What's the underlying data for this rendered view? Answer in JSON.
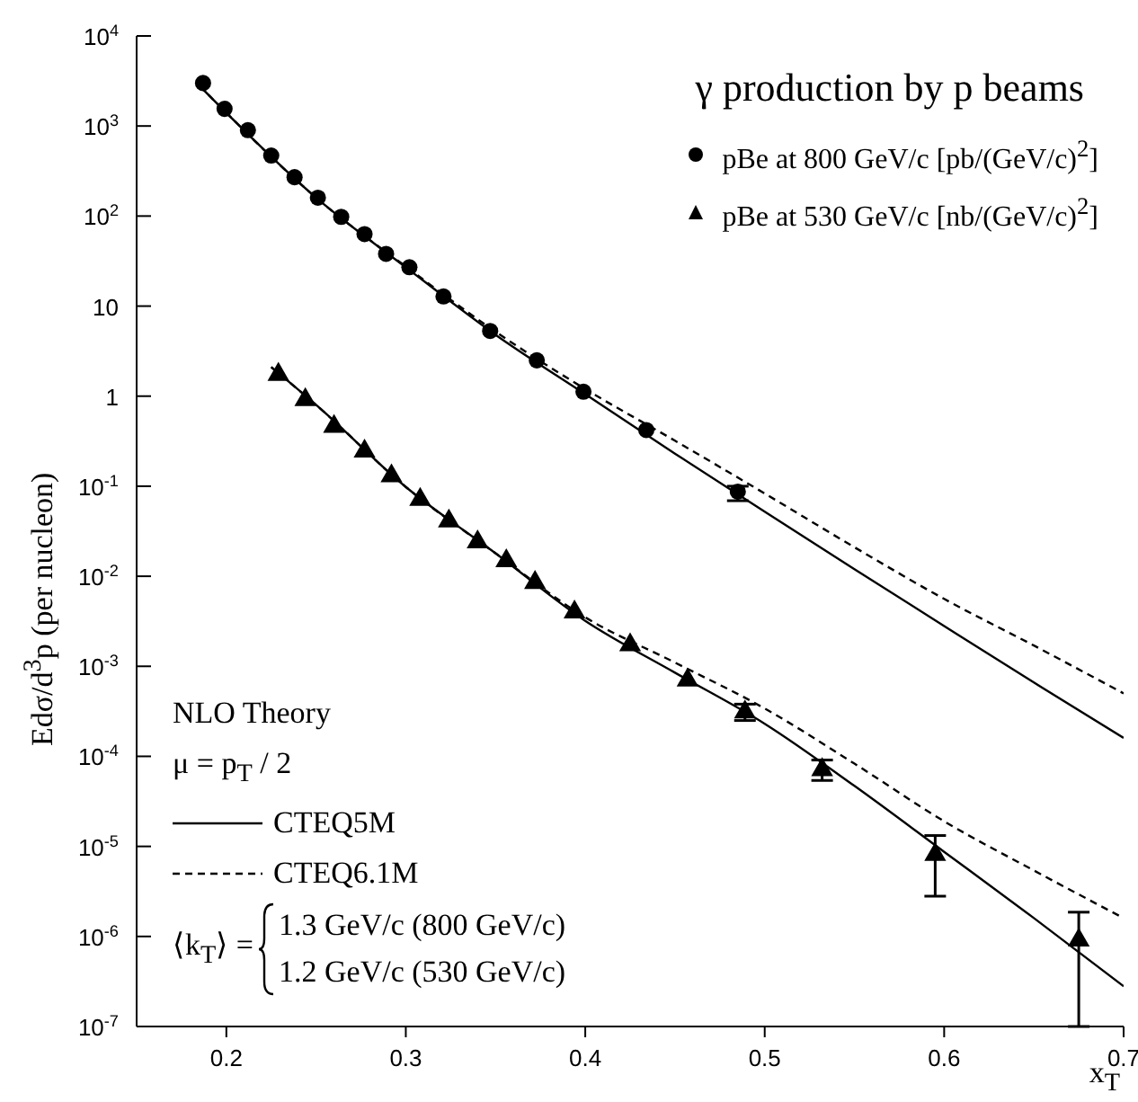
{
  "chart_data": {
    "type": "scatter",
    "title": "γ production by p beams",
    "xlabel": "x$_{T}$",
    "ylabel": "Edσ/d$^{3}$p (per nucleon)",
    "xlim": [
      0.15,
      0.7
    ],
    "xticks": [
      0.2,
      0.3,
      0.4,
      0.5,
      0.6,
      0.7
    ],
    "ylim": [
      1e-07,
      10000
    ],
    "log": "y",
    "yticks": [
      {
        "value": 1e-07,
        "label": "10$^{-7}$"
      },
      {
        "value": 1e-06,
        "label": "10$^{-6}$"
      },
      {
        "value": 1e-05,
        "label": "10$^{-5}$"
      },
      {
        "value": 0.0001,
        "label": "10$^{-4}$"
      },
      {
        "value": 0.001,
        "label": "10$^{-3}$"
      },
      {
        "value": 0.01,
        "label": "10$^{-2}$"
      },
      {
        "value": 0.1,
        "label": "10$^{-1}$"
      },
      {
        "value": 1,
        "label": "1"
      },
      {
        "value": 10,
        "label": "10"
      },
      {
        "value": 100,
        "label": "10$^{2}$"
      },
      {
        "value": 1000,
        "label": "10$^{3}$"
      },
      {
        "value": 10000,
        "label": "10$^{4}$"
      }
    ],
    "legend": "top right",
    "grid": false,
    "annotations": [
      "NLO Theory",
      "μ = p$_{T}$ / 2",
      "⟨k$_{T}$⟩ =",
      "1.3 GeV/c (800 GeV/c)",
      "1.2 GeV/c (530 GeV/c)"
    ],
    "series": [
      {
        "name": "pBe at 800 GeV/c [pb/(GeV/c)$^{2}$]",
        "marker": "circle",
        "color": "#000000",
        "x": [
          0.187,
          0.199,
          0.212,
          0.225,
          0.238,
          0.251,
          0.264,
          0.277,
          0.289,
          0.302,
          0.321,
          0.347,
          0.373,
          0.399,
          0.434,
          0.485
        ],
        "values": [
          3000,
          1550,
          900,
          470,
          270,
          160,
          98,
          63,
          38,
          27,
          12.8,
          5.3,
          2.5,
          1.12,
          0.42,
          0.087
        ],
        "errors": [
          null,
          null,
          null,
          null,
          null,
          null,
          null,
          null,
          null,
          null,
          null,
          null,
          null,
          null,
          null,
          [
            0.069,
            0.1
          ]
        ]
      },
      {
        "name": "pBe at 530 GeV/c [nb/(GeV/c)$^{2}$]",
        "marker": "triangle",
        "color": "#000000",
        "x": [
          0.229,
          0.244,
          0.26,
          0.277,
          0.292,
          0.308,
          0.324,
          0.34,
          0.356,
          0.372,
          0.394,
          0.425,
          0.457,
          0.489,
          0.532,
          0.595,
          0.675
        ],
        "values": [
          1.74,
          0.91,
          0.46,
          0.245,
          0.13,
          0.071,
          0.041,
          0.024,
          0.0148,
          0.0085,
          0.004,
          0.00173,
          0.0007,
          0.00031,
          7.1e-05,
          8.1e-06,
          9.1e-07
        ],
        "errors": [
          null,
          null,
          null,
          null,
          null,
          null,
          null,
          null,
          null,
          null,
          null,
          null,
          null,
          [
            0.00025,
            0.00038
          ],
          [
            5.4e-05,
            9.1e-05
          ],
          [
            2.8e-06,
            1.32e-05
          ],
          [
            1e-07,
            1.86e-06
          ]
        ]
      },
      {
        "name": "CTEQ5M",
        "type": "line",
        "line_style": "solid",
        "color": "#000000",
        "x": [
          0.185,
          0.2,
          0.25,
          0.3,
          0.35,
          0.4,
          0.45,
          0.5,
          0.55,
          0.6,
          0.65,
          0.7
        ],
        "values": [
          2800,
          1400,
          160,
          27,
          4.8,
          1.05,
          0.23,
          0.052,
          0.012,
          0.0028,
          0.00066,
          0.00016
        ]
      },
      {
        "name": "CTEQ6.1M",
        "type": "line",
        "line_style": "dashed",
        "color": "#000000",
        "x": [
          0.185,
          0.2,
          0.25,
          0.3,
          0.35,
          0.4,
          0.45,
          0.5,
          0.55,
          0.6,
          0.65,
          0.7
        ],
        "values": [
          2800,
          1400,
          160,
          27.5,
          5.2,
          1.2,
          0.32,
          0.083,
          0.021,
          0.0056,
          0.0017,
          0.0005
        ]
      },
      {
        "type": "line",
        "line_style": "solid",
        "color": "#000000",
        "x": [
          0.225,
          0.25,
          0.3,
          0.35,
          0.4,
          0.45,
          0.5,
          0.55,
          0.6,
          0.65,
          0.7
        ],
        "values": [
          2.1,
          0.8,
          0.098,
          0.018,
          0.0032,
          0.00085,
          0.00023,
          4.7e-05,
          8.7e-06,
          1.6e-06,
          2.8e-07
        ]
      },
      {
        "type": "line",
        "line_style": "dashed",
        "color": "#000000",
        "x": [
          0.225,
          0.25,
          0.3,
          0.35,
          0.4,
          0.45,
          0.5,
          0.55,
          0.6,
          0.65,
          0.7
        ],
        "values": [
          2.1,
          0.8,
          0.098,
          0.018,
          0.0035,
          0.0011,
          0.00034,
          8.3e-05,
          1.9e-05,
          5.4e-06,
          1.6e-06
        ]
      }
    ]
  }
}
